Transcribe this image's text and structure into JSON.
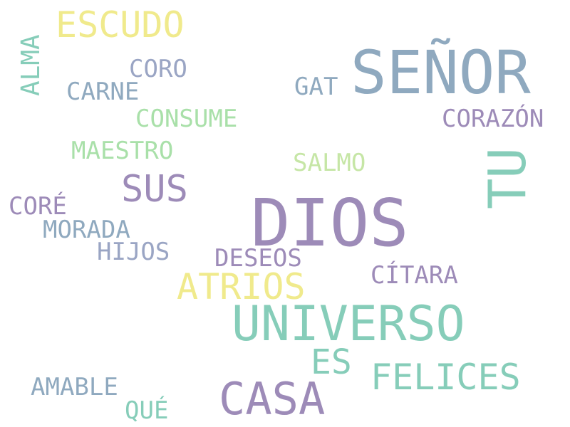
{
  "palette": {
    "slate_blue": "#8fa9bf",
    "lavender": "#9d8bb8",
    "mint": "#86cdb9",
    "light_green": "#a9e0a9",
    "yellow": "#f0ea8c",
    "grey_blue": "#9aa5c4"
  },
  "words": [
    {
      "text": "DIOS",
      "color": "#9d8bb8"
    },
    {
      "text": "SEÑOR",
      "color": "#8fa9bf"
    },
    {
      "text": "UNIVERSO",
      "color": "#86cdb9"
    },
    {
      "text": "CASA",
      "color": "#9d8bb8"
    },
    {
      "text": "TU",
      "color": "#86cdb9"
    },
    {
      "text": "ESCUDO",
      "color": "#f0ea8c"
    },
    {
      "text": "SUS",
      "color": "#9d8bb8"
    },
    {
      "text": "ATRIOS",
      "color": "#f0ea8c"
    },
    {
      "text": "FELICES",
      "color": "#86cdb9"
    },
    {
      "text": "ES",
      "color": "#86cdb9"
    },
    {
      "text": "CORAZÓN",
      "color": "#9d8bb8"
    },
    {
      "text": "CONSUME",
      "color": "#a9e0a9"
    },
    {
      "text": "MAESTRO",
      "color": "#a9e0a9"
    },
    {
      "text": "CARNE",
      "color": "#8fa9bf"
    },
    {
      "text": "CORO",
      "color": "#9aa5c4"
    },
    {
      "text": "GAT",
      "color": "#8fa9bf"
    },
    {
      "text": "SALMO",
      "color": "#c6e6a6"
    },
    {
      "text": "CORÉ",
      "color": "#9d8bb8"
    },
    {
      "text": "MORADA",
      "color": "#8fa9bf"
    },
    {
      "text": "HIJOS",
      "color": "#9aa5c4"
    },
    {
      "text": "DESEOS",
      "color": "#9d8bb8"
    },
    {
      "text": "CÍTARA",
      "color": "#9d8bb8"
    },
    {
      "text": "AMABLE",
      "color": "#8fa9bf"
    },
    {
      "text": "QUÉ",
      "color": "#86cdb9"
    },
    {
      "text": "ALMA",
      "color": "#86cdb9"
    }
  ]
}
